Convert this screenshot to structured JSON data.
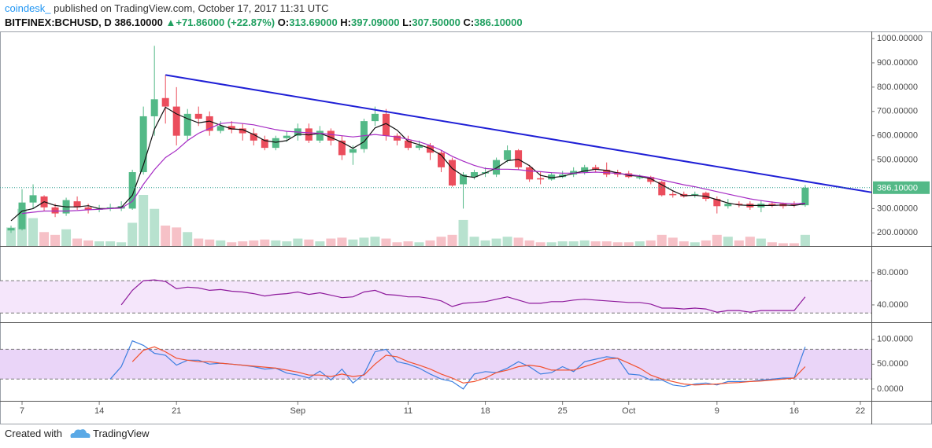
{
  "header": {
    "author": "coindesk_",
    "published": "published on TradingView.com, October 17, 2017 11:31 UTC",
    "symbol": "BITFINEX:BCHUSD, D",
    "last": "386.10000",
    "arrow": "▲",
    "change": "+71.86000 (+22.87%)",
    "o_label": "O:",
    "o_value": "313.69000",
    "h_label": "H:",
    "h_value": "397.09000",
    "l_label": "L:",
    "l_value": "307.50000",
    "c_label": "C:",
    "c_value": "386.10000"
  },
  "footer": {
    "created": "Created with",
    "brand": "TradingView"
  },
  "chart_data": {
    "type": "candlestick",
    "x": [
      "2017-08-06",
      "2017-08-07",
      "2017-08-08",
      "2017-08-09",
      "2017-08-10",
      "2017-08-11",
      "2017-08-12",
      "2017-08-13",
      "2017-08-14",
      "2017-08-15",
      "2017-08-16",
      "2017-08-17",
      "2017-08-18",
      "2017-08-19",
      "2017-08-20",
      "2017-08-21",
      "2017-08-22",
      "2017-08-23",
      "2017-08-24",
      "2017-08-25",
      "2017-08-26",
      "2017-08-27",
      "2017-08-28",
      "2017-08-29",
      "2017-08-30",
      "2017-08-31",
      "2017-09-01",
      "2017-09-02",
      "2017-09-03",
      "2017-09-04",
      "2017-09-05",
      "2017-09-06",
      "2017-09-07",
      "2017-09-08",
      "2017-09-09",
      "2017-09-10",
      "2017-09-11",
      "2017-09-12",
      "2017-09-13",
      "2017-09-14",
      "2017-09-15",
      "2017-09-16",
      "2017-09-17",
      "2017-09-18",
      "2017-09-19",
      "2017-09-20",
      "2017-09-21",
      "2017-09-22",
      "2017-09-23",
      "2017-09-24",
      "2017-09-25",
      "2017-09-26",
      "2017-09-27",
      "2017-09-28",
      "2017-09-29",
      "2017-09-30",
      "2017-10-01",
      "2017-10-02",
      "2017-10-03",
      "2017-10-04",
      "2017-10-05",
      "2017-10-06",
      "2017-10-07",
      "2017-10-08",
      "2017-10-09",
      "2017-10-10",
      "2017-10-11",
      "2017-10-12",
      "2017-10-13",
      "2017-10-14",
      "2017-10-15",
      "2017-10-16",
      "2017-10-17"
    ],
    "open": [
      210,
      215,
      325,
      350,
      305,
      280,
      330,
      305,
      295,
      300,
      300,
      300,
      450,
      680,
      755,
      720,
      600,
      690,
      680,
      620,
      640,
      630,
      610,
      585,
      550,
      590,
      600,
      630,
      580,
      620,
      580,
      530,
      545,
      660,
      690,
      600,
      580,
      550,
      560,
      530,
      500,
      400,
      430,
      445,
      440,
      500,
      540,
      470,
      425,
      420,
      430,
      440,
      450,
      470,
      460,
      450,
      445,
      425,
      430,
      410,
      360,
      360,
      355,
      365,
      340,
      310,
      320,
      320,
      305,
      320,
      320,
      318,
      313.69
    ],
    "high": [
      230,
      380,
      400,
      355,
      320,
      345,
      350,
      320,
      315,
      320,
      330,
      460,
      720,
      970,
      850,
      800,
      710,
      720,
      700,
      660,
      660,
      650,
      630,
      600,
      600,
      620,
      650,
      650,
      640,
      630,
      600,
      560,
      670,
      720,
      710,
      610,
      600,
      580,
      570,
      540,
      510,
      450,
      460,
      470,
      510,
      560,
      545,
      480,
      450,
      450,
      455,
      470,
      480,
      480,
      490,
      460,
      455,
      440,
      435,
      415,
      375,
      370,
      370,
      370,
      350,
      340,
      330,
      330,
      335,
      330,
      325,
      330,
      397.09
    ],
    "low": [
      200,
      210,
      300,
      290,
      265,
      270,
      295,
      280,
      285,
      290,
      290,
      295,
      440,
      600,
      650,
      560,
      580,
      640,
      600,
      610,
      610,
      580,
      560,
      540,
      540,
      575,
      580,
      570,
      570,
      560,
      500,
      480,
      530,
      640,
      580,
      560,
      540,
      540,
      500,
      450,
      390,
      300,
      420,
      430,
      430,
      490,
      460,
      410,
      400,
      415,
      425,
      430,
      440,
      450,
      430,
      430,
      425,
      420,
      400,
      350,
      345,
      345,
      345,
      330,
      280,
      300,
      305,
      295,
      285,
      305,
      300,
      305,
      307.5
    ],
    "close": [
      220,
      325,
      355,
      305,
      280,
      335,
      305,
      295,
      300,
      305,
      310,
      450,
      680,
      750,
      720,
      600,
      690,
      670,
      620,
      640,
      625,
      610,
      580,
      550,
      590,
      600,
      630,
      580,
      620,
      580,
      520,
      545,
      660,
      690,
      600,
      580,
      550,
      560,
      530,
      470,
      395,
      440,
      450,
      450,
      500,
      540,
      470,
      420,
      420,
      440,
      440,
      455,
      470,
      460,
      440,
      440,
      430,
      430,
      410,
      355,
      355,
      350,
      360,
      340,
      310,
      320,
      315,
      305,
      320,
      315,
      310,
      314,
      386.1
    ],
    "volume": [
      20,
      40,
      30,
      15,
      12,
      18,
      8,
      6,
      5,
      5,
      4,
      25,
      55,
      40,
      22,
      20,
      15,
      8,
      7,
      6,
      4,
      5,
      6,
      7,
      6,
      5,
      8,
      7,
      5,
      8,
      9,
      7,
      9,
      10,
      8,
      4,
      5,
      4,
      6,
      10,
      12,
      28,
      10,
      6,
      8,
      10,
      9,
      6,
      4,
      4,
      5,
      5,
      6,
      5,
      5,
      4,
      4,
      5,
      6,
      12,
      9,
      5,
      4,
      6,
      12,
      10,
      6,
      10,
      8,
      4,
      3,
      3,
      12
    ],
    "up_color": "#53b987",
    "down_color": "#eb4d5c",
    "volume_up_color": "#b8e2cf",
    "volume_down_color": "#f6c1c7",
    "ylim": [
      146,
      1026
    ],
    "yticks": [
      {
        "value": 1000,
        "label": "1000.00000"
      },
      {
        "value": 900,
        "label": "900.00000"
      },
      {
        "value": 800,
        "label": "800.00000"
      },
      {
        "value": 700,
        "label": "700.00000"
      },
      {
        "value": 600,
        "label": "600.00000"
      },
      {
        "value": 500,
        "label": "500.00000"
      },
      {
        "value": 300,
        "label": "300.00000"
      },
      {
        "value": 200,
        "label": "200.00000"
      }
    ],
    "series": [
      {
        "color": "#111111",
        "values": [
          250,
          290,
          300,
          328,
          313,
          307,
          307,
          312,
          300,
          300,
          305,
          355,
          480,
          627,
          717,
          690,
          670,
          653,
          660,
          643,
          628,
          625,
          605,
          580,
          573,
          580,
          607,
          603,
          610,
          593,
          573,
          548,
          575,
          632,
          650,
          623,
          577,
          563,
          547,
          520,
          465,
          435,
          428,
          447,
          467,
          497,
          503,
          477,
          437,
          427,
          433,
          445,
          455,
          462,
          457,
          447,
          437,
          433,
          423,
          398,
          373,
          353,
          355,
          350,
          337,
          323,
          315,
          313,
          313,
          313,
          315,
          313,
          320
        ]
      },
      {
        "color": "#a62bc4",
        "values": [
          null,
          280,
          285,
          290,
          290,
          290,
          292,
          295,
          297,
          300,
          302,
          330,
          400,
          460,
          510,
          540,
          580,
          610,
          630,
          650,
          655,
          650,
          645,
          635,
          625,
          618,
          615,
          612,
          610,
          605,
          600,
          595,
          600,
          605,
          600,
          595,
          585,
          575,
          560,
          540,
          515,
          495,
          478,
          465,
          462,
          462,
          460,
          455,
          452,
          448,
          446,
          446,
          448,
          450,
          448,
          445,
          440,
          435,
          428,
          418,
          408,
          398,
          390,
          380,
          370,
          360,
          350,
          340,
          333,
          327,
          322,
          320,
          322
        ]
      }
    ],
    "trendline": {
      "color": "#1f1fd6",
      "x": [
        "2017-08-20",
        "2017-10-23"
      ],
      "values": [
        850,
        367
      ]
    },
    "last_price": {
      "value": 386.1,
      "label": "386.10000",
      "color": "#53b987"
    },
    "xlim": [
      "2017-08-05",
      "2017-10-23"
    ],
    "xticks": [
      {
        "value": "2017-08-07",
        "label": "7"
      },
      {
        "value": "2017-08-14",
        "label": "14"
      },
      {
        "value": "2017-08-21",
        "label": "21"
      },
      {
        "value": "2017-09-01",
        "label": "Sep"
      },
      {
        "value": "2017-09-11",
        "label": "11"
      },
      {
        "value": "2017-09-18",
        "label": "18"
      },
      {
        "value": "2017-09-25",
        "label": "25"
      },
      {
        "value": "2017-10-01",
        "label": "Oct"
      },
      {
        "value": "2017-10-09",
        "label": "9"
      },
      {
        "value": "2017-10-16",
        "label": "16"
      },
      {
        "value": "2017-10-22",
        "label": "22"
      }
    ],
    "panels": [
      {
        "type": "line",
        "ylim": [
          18.5,
          112
        ],
        "bands": [
          70,
          30
        ],
        "band_color": "#f5e6fb",
        "yticks": [
          {
            "value": 80,
            "label": "80.0000"
          },
          {
            "value": 40,
            "label": "40.0000"
          }
        ],
        "series": [
          {
            "color": "#8e1a9c",
            "values": [
              null,
              null,
              null,
              null,
              null,
              null,
              null,
              null,
              null,
              null,
              40,
              58,
              70,
              71,
              69,
              60,
              62,
              61,
              58,
              59,
              57,
              56,
              54,
              51,
              53,
              54,
              56,
              53,
              55,
              52,
              49,
              50,
              56,
              58,
              53,
              52,
              50,
              50,
              48,
              45,
              38,
              42,
              43,
              44,
              47,
              50,
              46,
              42,
              42,
              44,
              44,
              46,
              47,
              46,
              45,
              44,
              43,
              43,
              41,
              36,
              36,
              35,
              36,
              35,
              31,
              33,
              33,
              31,
              33,
              33,
              33,
              33,
              50
            ]
          }
        ]
      },
      {
        "type": "line",
        "ylim": [
          -24,
          133
        ],
        "bands": [
          80,
          20
        ],
        "band_color": "#ead5f8",
        "yticks": [
          {
            "value": 100,
            "label": "100.0000"
          },
          {
            "value": 50,
            "label": "50.0000"
          },
          {
            "value": 0,
            "label": "0.0000"
          }
        ],
        "series": [
          {
            "color": "#3d7fe0",
            "values": [
              null,
              null,
              null,
              null,
              null,
              null,
              null,
              null,
              null,
              20,
              45,
              97,
              88,
              72,
              68,
              48,
              58,
              58,
              50,
              52,
              50,
              48,
              45,
              40,
              42,
              32,
              28,
              22,
              36,
              18,
              40,
              12,
              30,
              75,
              80,
              55,
              50,
              42,
              30,
              20,
              15,
              0,
              30,
              35,
              33,
              42,
              55,
              45,
              30,
              33,
              45,
              35,
              55,
              60,
              65,
              62,
              30,
              28,
              18,
              18,
              8,
              5,
              10,
              12,
              8,
              15,
              15,
              15,
              18,
              20,
              22,
              22,
              85
            ]
          },
          {
            "color": "#f2512f",
            "values": [
              null,
              null,
              null,
              null,
              null,
              null,
              null,
              null,
              null,
              null,
              null,
              55,
              78,
              85,
              75,
              62,
              58,
              55,
              55,
              52,
              50,
              48,
              46,
              44,
              42,
              38,
              34,
              28,
              28,
              25,
              30,
              25,
              28,
              50,
              68,
              65,
              55,
              48,
              40,
              30,
              22,
              12,
              15,
              22,
              33,
              38,
              45,
              48,
              45,
              38,
              38,
              38,
              45,
              52,
              60,
              62,
              52,
              42,
              28,
              20,
              15,
              10,
              8,
              9,
              10,
              12,
              13,
              15,
              16,
              18,
              20,
              22,
              45
            ]
          }
        ]
      }
    ]
  }
}
